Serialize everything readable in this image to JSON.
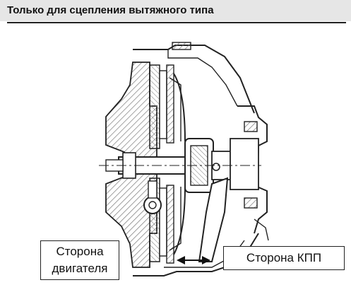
{
  "title": "Только для сцепления вытяжного типа",
  "labels": {
    "engine_side_line1": "Сторона",
    "engine_side_line2": "двигателя",
    "gearbox_side": "Сторона КПП"
  },
  "colors": {
    "ink": "#222222",
    "hatch": "#8a8a8a",
    "header_band": "#e6e6e6"
  }
}
